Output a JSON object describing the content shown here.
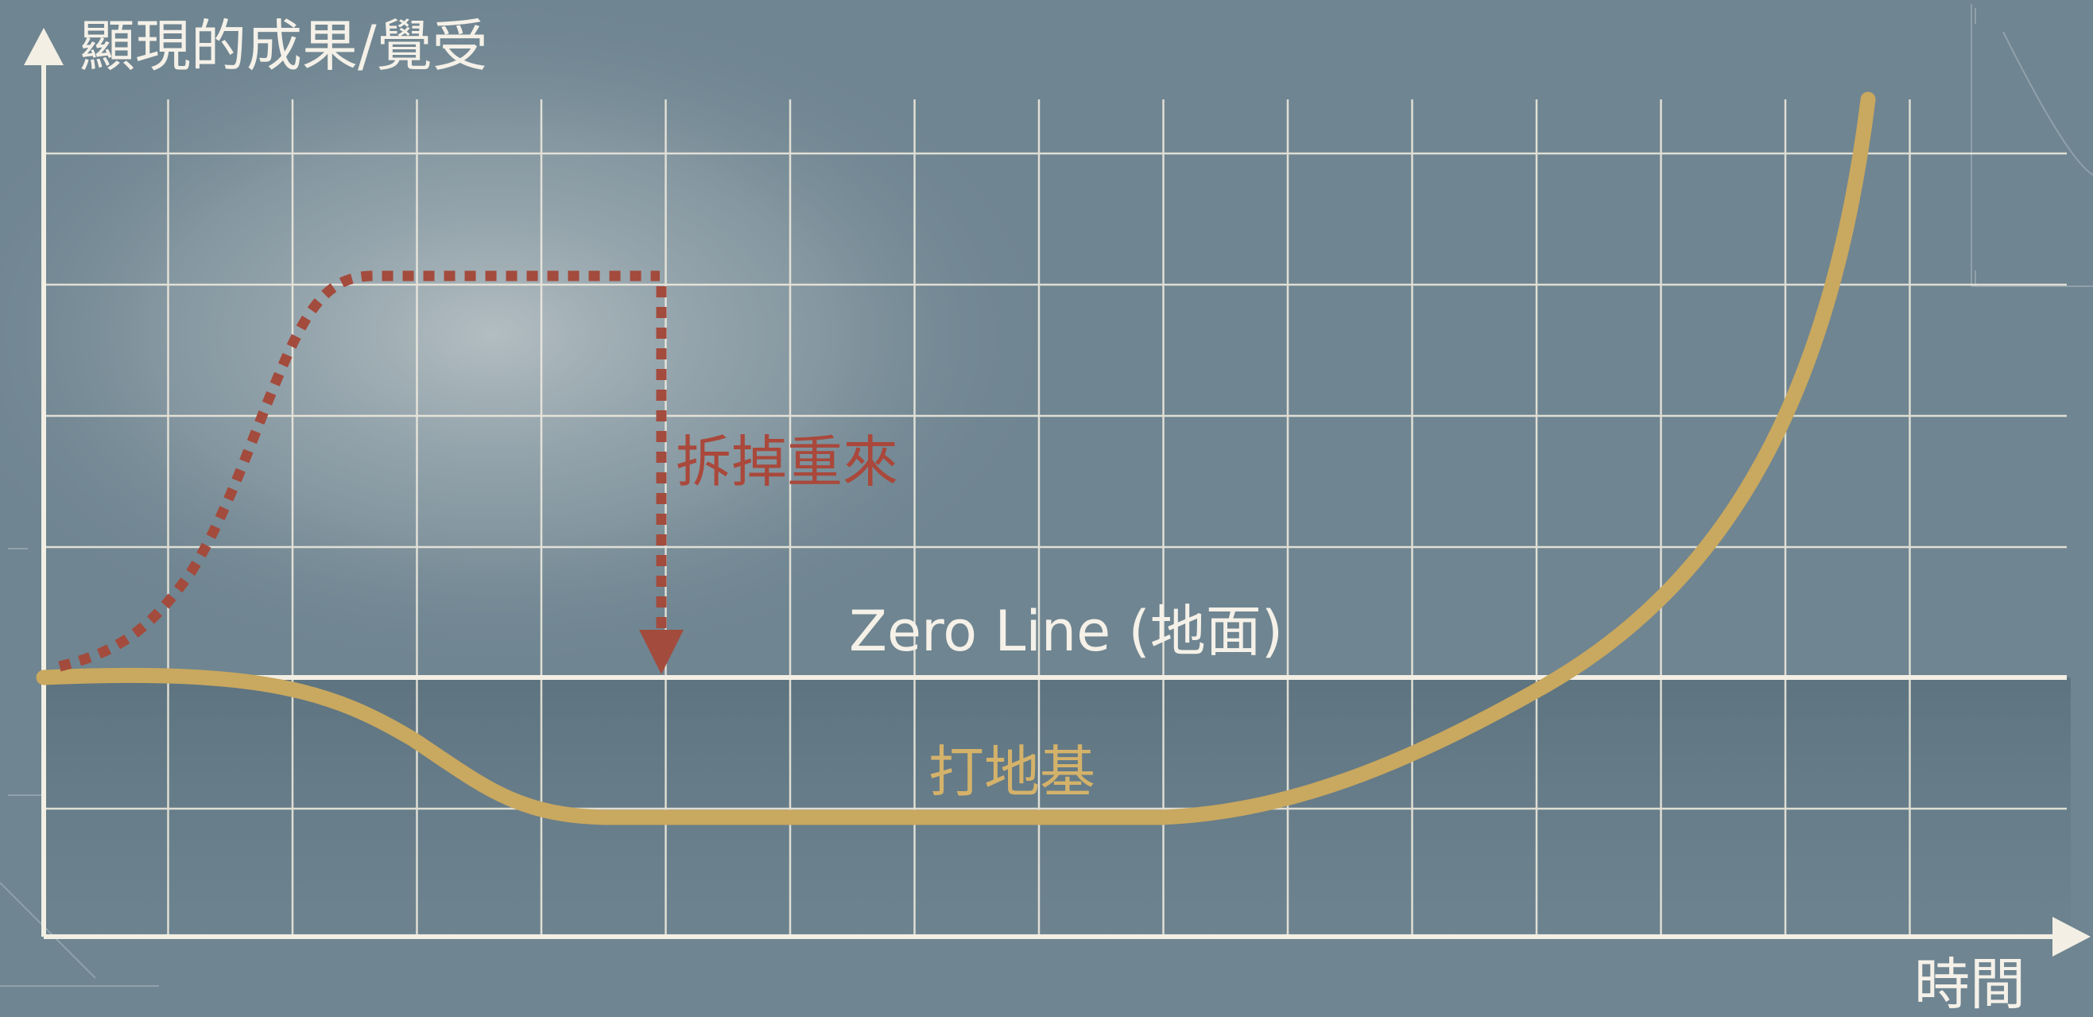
{
  "axes": {
    "y_label": "顯現的成果/覺受",
    "x_label": "時間"
  },
  "annotations": {
    "zero_line": "Zero Line (地面)",
    "teardown": "拆掉重來",
    "foundation": "打地基"
  },
  "colors": {
    "background": "#6f8591",
    "grid": "#f0ebdf",
    "axis": "#f3efe4",
    "gold_curve": "#c9a85f",
    "red_dotted": "#a34b3d",
    "label_red": "#a9483b",
    "label_gold": "#d4b26a",
    "text_light": "#f5f1e8"
  }
}
